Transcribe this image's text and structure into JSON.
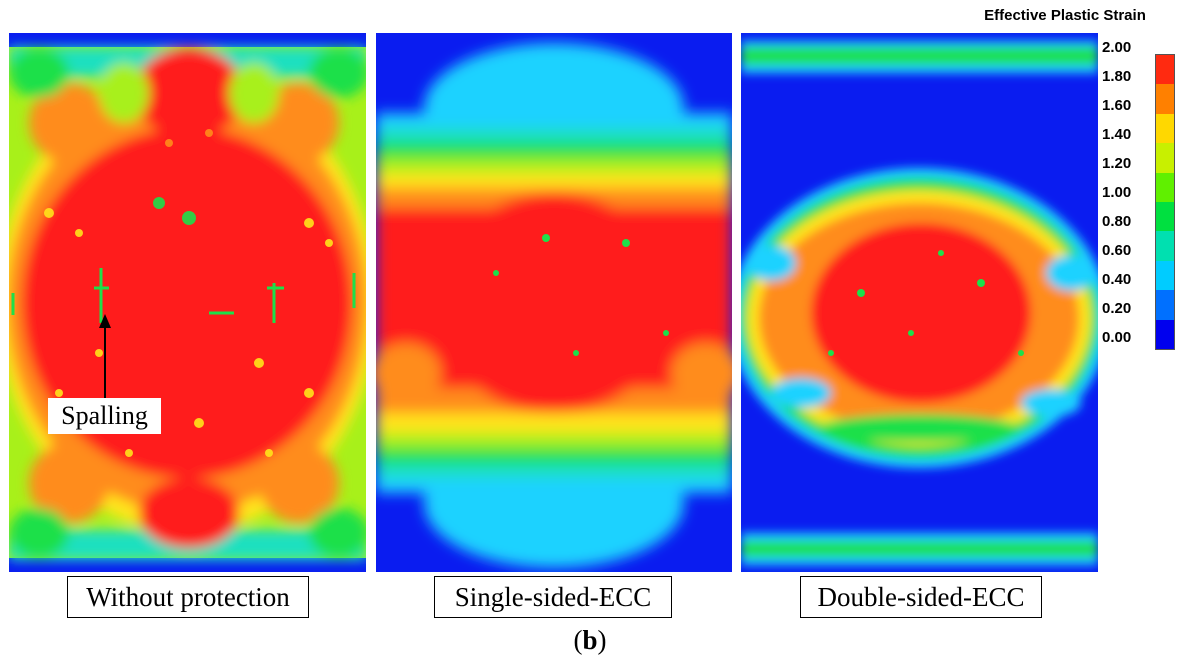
{
  "panels": [
    {
      "caption": "Without protection"
    },
    {
      "caption": "Single-sided-ECC"
    },
    {
      "caption": "Double-sided-ECC"
    }
  ],
  "annotation": {
    "label": "Spalling"
  },
  "figure_label": "b",
  "legend": {
    "title": "Effective Plastic Strain",
    "ticks": [
      "2.00",
      "1.80",
      "1.60",
      "1.40",
      "1.20",
      "1.00",
      "0.80",
      "0.60",
      "0.40",
      "0.20",
      "0.00"
    ],
    "colors": [
      "#0000ee",
      "#0070ff",
      "#00ccff",
      "#00e0b0",
      "#00e040",
      "#60f000",
      "#c8f000",
      "#ffd800",
      "#ff8000",
      "#ff2a10"
    ]
  },
  "colors": {
    "red": "#ff1a1a",
    "orange": "#ff8c1a",
    "yellow": "#ffe41a",
    "lime": "#a8f01a",
    "green": "#1ee04a",
    "cyan": "#1ad2ff",
    "teal": "#1ae0c0",
    "blue": "#0a1cf0"
  }
}
